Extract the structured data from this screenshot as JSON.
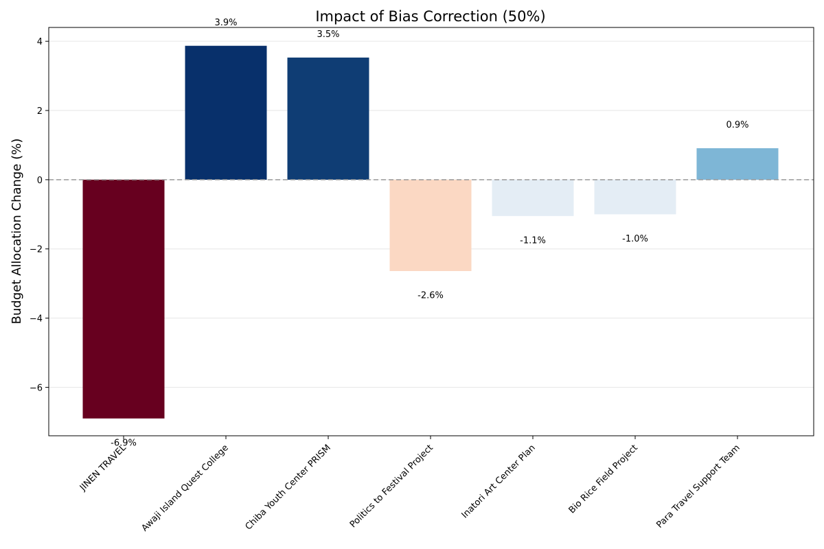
{
  "chart_data": {
    "type": "bar",
    "title": "Impact of Bias Correction (50%)",
    "xlabel": "",
    "ylabel": "Budget Allocation Change (%)",
    "ylim": [
      -7.4,
      4.4
    ],
    "yticks": [
      4,
      2,
      0,
      -2,
      -4,
      -6
    ],
    "ytick_labels": [
      "4",
      "2",
      "0",
      "−2",
      "−4",
      "−6"
    ],
    "grid": true,
    "zero_line": "dashed",
    "categories": [
      "JINEN TRAVEL",
      "Awaji Island Quest College",
      "Chiba Youth Center PRISM",
      "Politics to Festival Project",
      "Inatori Art Center Plan",
      "Bio Rice Field Project",
      "Para Travel Support Team"
    ],
    "values": [
      -6.9,
      3.87,
      3.53,
      -2.64,
      -1.05,
      -1.0,
      0.91
    ],
    "data_labels": [
      "-6.9%",
      "3.9%",
      "3.5%",
      "-2.6%",
      "-1.1%",
      "-1.0%",
      "0.9%"
    ],
    "colors": [
      "#67001f",
      "#08306b",
      "#0f3d74",
      "#fbd8c3",
      "#e4edf5",
      "#e4edf5",
      "#7eb6d6"
    ]
  }
}
